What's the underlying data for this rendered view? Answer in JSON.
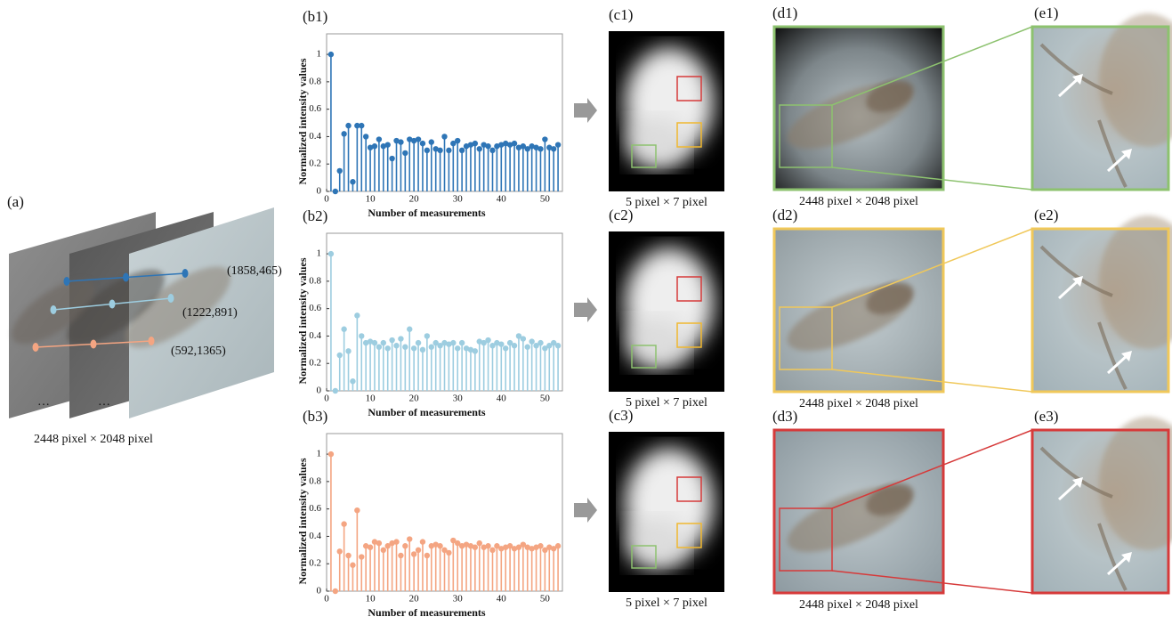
{
  "panel_a": {
    "label": "(a)",
    "points": [
      "(1858,465)",
      "(1222,891)",
      "(592,1365)"
    ],
    "ellipsis": "…",
    "caption": "2448 pixel × 2048 pixel"
  },
  "chart_data": [
    {
      "type": "stem",
      "label": "(b1)",
      "xlabel": "Number of measurements",
      "ylabel": "Normalized intensity values",
      "color": "#2e75b6",
      "x": [
        1,
        2,
        3,
        4,
        5,
        6,
        7,
        8,
        9,
        10,
        11,
        12,
        13,
        14,
        15,
        16,
        17,
        18,
        19,
        20,
        21,
        22,
        23,
        24,
        25,
        26,
        27,
        28,
        29,
        30,
        31,
        32,
        33,
        34,
        35,
        36,
        37,
        38,
        39,
        40,
        41,
        42,
        43,
        44,
        45,
        46,
        47,
        48,
        49,
        50,
        51,
        52,
        53
      ],
      "values": [
        1,
        0,
        0.15,
        0.42,
        0.48,
        0.07,
        0.48,
        0.48,
        0.4,
        0.32,
        0.33,
        0.38,
        0.33,
        0.34,
        0.24,
        0.37,
        0.36,
        0.28,
        0.38,
        0.37,
        0.38,
        0.35,
        0.3,
        0.36,
        0.31,
        0.3,
        0.4,
        0.3,
        0.35,
        0.37,
        0.3,
        0.33,
        0.34,
        0.35,
        0.31,
        0.34,
        0.33,
        0.3,
        0.33,
        0.34,
        0.35,
        0.34,
        0.35,
        0.32,
        0.33,
        0.31,
        0.33,
        0.32,
        0.31,
        0.38,
        0.32,
        0.31,
        0.34
      ],
      "xlim": [
        0,
        54
      ],
      "ylim": [
        0,
        1.15
      ],
      "xticks": [
        0,
        10,
        20,
        30,
        40,
        50
      ],
      "yticks": [
        0,
        0.2,
        0.4,
        0.6,
        0.8,
        1
      ]
    },
    {
      "type": "stem",
      "label": "(b2)",
      "xlabel": "Number of measurements",
      "ylabel": "Normalized intensity values",
      "color": "#9dcde0",
      "x": [
        1,
        2,
        3,
        4,
        5,
        6,
        7,
        8,
        9,
        10,
        11,
        12,
        13,
        14,
        15,
        16,
        17,
        18,
        19,
        20,
        21,
        22,
        23,
        24,
        25,
        26,
        27,
        28,
        29,
        30,
        31,
        32,
        33,
        34,
        35,
        36,
        37,
        38,
        39,
        40,
        41,
        42,
        43,
        44,
        45,
        46,
        47,
        48,
        49,
        50,
        51,
        52,
        53
      ],
      "values": [
        1,
        0,
        0.26,
        0.45,
        0.29,
        0.07,
        0.55,
        0.4,
        0.35,
        0.36,
        0.35,
        0.32,
        0.35,
        0.31,
        0.37,
        0.33,
        0.38,
        0.32,
        0.45,
        0.31,
        0.35,
        0.3,
        0.4,
        0.32,
        0.35,
        0.33,
        0.35,
        0.34,
        0.35,
        0.31,
        0.35,
        0.31,
        0.3,
        0.29,
        0.36,
        0.35,
        0.37,
        0.33,
        0.35,
        0.34,
        0.31,
        0.35,
        0.33,
        0.4,
        0.38,
        0.32,
        0.36,
        0.33,
        0.35,
        0.31,
        0.33,
        0.35,
        0.33
      ],
      "xlim": [
        0,
        54
      ],
      "ylim": [
        0,
        1.15
      ],
      "xticks": [
        0,
        10,
        20,
        30,
        40,
        50
      ],
      "yticks": [
        0,
        0.2,
        0.4,
        0.6,
        0.8,
        1
      ]
    },
    {
      "type": "stem",
      "label": "(b3)",
      "xlabel": "Number of measurements",
      "ylabel": "Normalized intensity values",
      "color": "#f4a582",
      "x": [
        1,
        2,
        3,
        4,
        5,
        6,
        7,
        8,
        9,
        10,
        11,
        12,
        13,
        14,
        15,
        16,
        17,
        18,
        19,
        20,
        21,
        22,
        23,
        24,
        25,
        26,
        27,
        28,
        29,
        30,
        31,
        32,
        33,
        34,
        35,
        36,
        37,
        38,
        39,
        40,
        41,
        42,
        43,
        44,
        45,
        46,
        47,
        48,
        49,
        50,
        51,
        52,
        53
      ],
      "values": [
        1,
        0,
        0.29,
        0.49,
        0.26,
        0.19,
        0.59,
        0.25,
        0.33,
        0.32,
        0.36,
        0.35,
        0.3,
        0.33,
        0.35,
        0.36,
        0.26,
        0.33,
        0.38,
        0.27,
        0.3,
        0.36,
        0.26,
        0.33,
        0.34,
        0.33,
        0.3,
        0.28,
        0.37,
        0.35,
        0.33,
        0.34,
        0.33,
        0.32,
        0.35,
        0.32,
        0.33,
        0.3,
        0.33,
        0.31,
        0.32,
        0.33,
        0.31,
        0.32,
        0.34,
        0.32,
        0.31,
        0.32,
        0.33,
        0.3,
        0.32,
        0.31,
        0.33
      ],
      "xlim": [
        0,
        54
      ],
      "ylim": [
        0,
        1.15
      ],
      "xticks": [
        0,
        10,
        20,
        30,
        40,
        50
      ],
      "yticks": [
        0,
        0.2,
        0.4,
        0.6,
        0.8,
        1
      ]
    }
  ],
  "panel_c": [
    {
      "label": "(c1)",
      "caption": "5 pixel × 7 pixel"
    },
    {
      "label": "(c2)",
      "caption": "5 pixel × 7 pixel"
    },
    {
      "label": "(c3)",
      "caption": "5 pixel × 7 pixel"
    }
  ],
  "panel_d": [
    {
      "label": "(d1)",
      "caption": "2448 pixel × 2048 pixel"
    },
    {
      "label": "(d2)",
      "caption": "2448 pixel × 2048 pixel"
    },
    {
      "label": "(d3)",
      "caption": "2448 pixel × 2048 pixel"
    }
  ],
  "panel_e": [
    {
      "label": "(e1)"
    },
    {
      "label": "(e2)"
    },
    {
      "label": "(e3)"
    }
  ]
}
